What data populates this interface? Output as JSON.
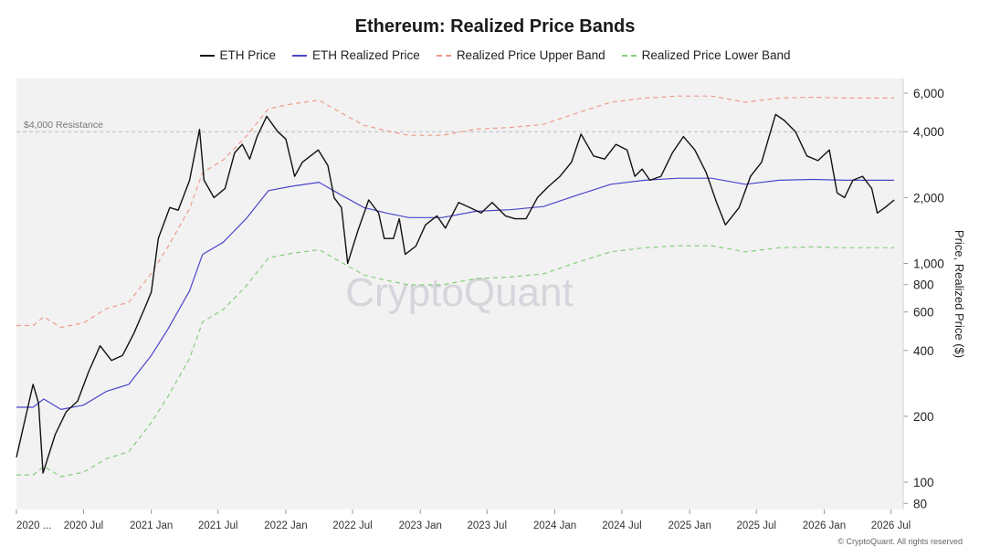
{
  "chart_data": {
    "type": "line",
    "title": "Ethereum: Realized Price Bands",
    "ylabel": "Price, Realized Price ($)",
    "y_scale": "log",
    "ylim": [
      75,
      7000
    ],
    "xlim": [
      "2020-01-01",
      "2026-08-01"
    ],
    "grid": false,
    "legend_position": "top-center",
    "watermark": "CryptoQuant",
    "y_ticks": [
      80,
      100,
      200,
      400,
      600,
      800,
      1000,
      2000,
      4000,
      6000
    ],
    "y_tick_labels": [
      "80",
      "100",
      "200",
      "400",
      "600",
      "800",
      "1,000",
      "2,000",
      "4,000",
      "6,000"
    ],
    "x_ticks": [
      "2020-01-01",
      "2020-07-01",
      "2021-01-01",
      "2021-07-01",
      "2022-01-01",
      "2022-07-01",
      "2023-01-01",
      "2023-07-01",
      "2024-01-01",
      "2024-07-01",
      "2025-01-01",
      "2025-07-01",
      "2026-01-01",
      "2026-07-01"
    ],
    "x_tick_labels": [
      "2020 ...",
      "2020 Jul",
      "2021 Jan",
      "2021 Jul",
      "2022 Jan",
      "2022 Jul",
      "2023 Jan",
      "2023 Jul",
      "2024 Jan",
      "2024 Jul",
      "2025 Jan",
      "2025 Jul",
      "2026 Jan",
      "2026 Jul"
    ],
    "annotations": [
      {
        "label": "$4,000 Resistance",
        "y": 4000,
        "style": "dashed-horizontal"
      }
    ],
    "series": [
      {
        "name": "ETH Price",
        "color": "#111111",
        "style": "solid",
        "x": [
          "2020-01-01",
          "2020-02-15",
          "2020-03-01",
          "2020-03-13",
          "2020-04-15",
          "2020-05-15",
          "2020-06-15",
          "2020-07-15",
          "2020-08-15",
          "2020-09-15",
          "2020-10-15",
          "2020-11-15",
          "2020-12-15",
          "2021-01-01",
          "2021-01-20",
          "2021-02-20",
          "2021-03-15",
          "2021-04-15",
          "2021-05-12",
          "2021-05-24",
          "2021-06-20",
          "2021-07-20",
          "2021-08-15",
          "2021-09-05",
          "2021-09-25",
          "2021-10-15",
          "2021-11-10",
          "2021-12-10",
          "2022-01-01",
          "2022-01-25",
          "2022-02-15",
          "2022-03-30",
          "2022-04-25",
          "2022-05-12",
          "2022-06-01",
          "2022-06-18",
          "2022-07-15",
          "2022-08-14",
          "2022-09-10",
          "2022-09-25",
          "2022-10-20",
          "2022-11-05",
          "2022-11-21",
          "2022-12-20",
          "2023-01-15",
          "2023-02-15",
          "2023-03-10",
          "2023-04-15",
          "2023-05-15",
          "2023-06-15",
          "2023-07-15",
          "2023-08-20",
          "2023-09-15",
          "2023-10-15",
          "2023-11-15",
          "2023-12-15",
          "2024-01-15",
          "2024-02-15",
          "2024-03-12",
          "2024-04-15",
          "2024-05-15",
          "2024-06-15",
          "2024-07-15",
          "2024-08-05",
          "2024-08-25",
          "2024-09-15",
          "2024-10-15",
          "2024-11-15",
          "2024-12-15",
          "2025-01-15",
          "2025-02-15",
          "2025-03-15",
          "2025-04-08",
          "2025-05-15",
          "2025-06-15",
          "2025-07-15",
          "2025-08-22",
          "2025-09-15",
          "2025-10-15",
          "2025-11-15",
          "2025-12-15",
          "2026-01-15",
          "2026-02-05",
          "2026-02-25",
          "2026-03-20",
          "2026-04-15",
          "2026-05-10",
          "2026-05-25",
          "2026-06-15",
          "2026-07-10"
        ],
        "y": [
          130,
          280,
          230,
          110,
          165,
          210,
          235,
          320,
          420,
          360,
          380,
          480,
          630,
          740,
          1300,
          1800,
          1750,
          2400,
          4100,
          2400,
          2000,
          2200,
          3200,
          3500,
          3000,
          3800,
          4700,
          4000,
          3700,
          2500,
          2900,
          3300,
          2800,
          2000,
          1800,
          1000,
          1400,
          1950,
          1700,
          1300,
          1300,
          1600,
          1100,
          1200,
          1500,
          1650,
          1450,
          1900,
          1800,
          1700,
          1900,
          1650,
          1600,
          1600,
          2000,
          2250,
          2500,
          2900,
          3900,
          3100,
          3000,
          3500,
          3300,
          2500,
          2700,
          2400,
          2500,
          3200,
          3800,
          3300,
          2600,
          1900,
          1500,
          1800,
          2500,
          2900,
          4800,
          4500,
          4000,
          3100,
          2950,
          3300,
          2100,
          2000,
          2400,
          2500,
          2200,
          1700,
          1800,
          1950
        ]
      },
      {
        "name": "ETH Realized Price",
        "color": "#4b46c9",
        "style": "solid",
        "x": [
          "2020-01-01",
          "2020-02-15",
          "2020-03-15",
          "2020-05-01",
          "2020-07-01",
          "2020-09-01",
          "2020-11-01",
          "2021-01-01",
          "2021-02-15",
          "2021-04-15",
          "2021-05-20",
          "2021-07-15",
          "2021-09-15",
          "2021-11-15",
          "2022-01-15",
          "2022-04-01",
          "2022-06-01",
          "2022-08-01",
          "2022-10-01",
          "2022-12-01",
          "2023-03-01",
          "2023-06-01",
          "2023-09-01",
          "2023-12-01",
          "2024-03-01",
          "2024-06-01",
          "2024-09-01",
          "2024-12-01",
          "2025-03-01",
          "2025-06-01",
          "2025-09-01",
          "2025-12-01",
          "2026-03-01",
          "2026-07-10"
        ],
        "y": [
          220,
          220,
          240,
          215,
          225,
          260,
          280,
          380,
          500,
          750,
          1100,
          1250,
          1600,
          2150,
          2250,
          2350,
          2050,
          1800,
          1700,
          1620,
          1620,
          1730,
          1760,
          1820,
          2050,
          2300,
          2400,
          2450,
          2450,
          2300,
          2400,
          2420,
          2400,
          2400
        ]
      },
      {
        "name": "Realized Price Upper Band",
        "color": "#ee9a8c",
        "style": "dashed",
        "x": [
          "2020-01-01",
          "2020-02-15",
          "2020-03-15",
          "2020-05-01",
          "2020-07-01",
          "2020-09-01",
          "2020-11-01",
          "2021-01-01",
          "2021-02-15",
          "2021-04-15",
          "2021-05-20",
          "2021-07-15",
          "2021-09-15",
          "2021-11-15",
          "2022-01-15",
          "2022-04-01",
          "2022-06-01",
          "2022-08-01",
          "2022-10-01",
          "2022-12-01",
          "2023-03-01",
          "2023-06-01",
          "2023-09-01",
          "2023-12-01",
          "2024-03-01",
          "2024-06-01",
          "2024-09-01",
          "2024-12-01",
          "2025-03-01",
          "2025-06-01",
          "2025-09-01",
          "2025-12-01",
          "2026-03-01",
          "2026-07-10"
        ],
        "y": [
          520,
          520,
          570,
          510,
          535,
          620,
          665,
          900,
          1190,
          1780,
          2600,
          2970,
          3800,
          5100,
          5350,
          5580,
          4870,
          4280,
          4040,
          3850,
          3850,
          4110,
          4180,
          4320,
          4870,
          5460,
          5700,
          5820,
          5820,
          5460,
          5700,
          5750,
          5700,
          5700
        ]
      },
      {
        "name": "Realized Price Lower Band",
        "color": "#86cd7e",
        "style": "dashed",
        "x": [
          "2020-01-01",
          "2020-02-15",
          "2020-03-15",
          "2020-05-01",
          "2020-07-01",
          "2020-09-01",
          "2020-11-01",
          "2021-01-01",
          "2021-02-15",
          "2021-04-15",
          "2021-05-20",
          "2021-07-15",
          "2021-09-15",
          "2021-11-15",
          "2022-01-15",
          "2022-04-01",
          "2022-06-01",
          "2022-08-01",
          "2022-10-01",
          "2022-12-01",
          "2023-03-01",
          "2023-06-01",
          "2023-09-01",
          "2023-12-01",
          "2024-03-01",
          "2024-06-01",
          "2024-09-01",
          "2024-12-01",
          "2025-03-01",
          "2025-06-01",
          "2025-09-01",
          "2025-12-01",
          "2026-03-01",
          "2026-07-10"
        ],
        "y": [
          108,
          108,
          118,
          106,
          111,
          128,
          138,
          187,
          246,
          368,
          540,
          615,
          787,
          1060,
          1110,
          1155,
          1010,
          886,
          837,
          798,
          798,
          852,
          866,
          896,
          1010,
          1130,
          1180,
          1205,
          1205,
          1130,
          1180,
          1190,
          1180,
          1180
        ]
      }
    ]
  },
  "footer": {
    "copyright": "© CryptoQuant. All rights reserved"
  }
}
